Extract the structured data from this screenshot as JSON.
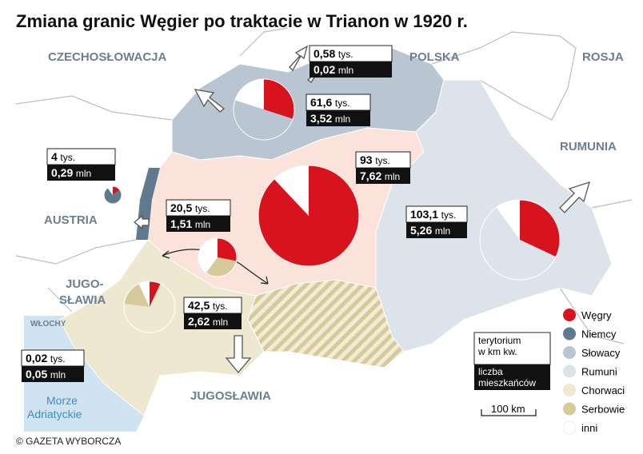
{
  "title": "Zmiana granic Węgier po traktacie w Trianon w 1920 r.",
  "countries": {
    "czechoslovakia": "CZECHOSŁOWACJA",
    "poland": "POLSKA",
    "russia": "ROSJA",
    "romania": "RUMUNIA",
    "austria": "AUSTRIA",
    "yugoslavia_west": [
      "JUGO-",
      "SŁAWIA"
    ],
    "italy": "WŁOCHY",
    "yugoslavia": "JUGOSŁAWIA",
    "sea": [
      "Morze",
      "Adriatyckie"
    ]
  },
  "regions": [
    {
      "area": "61,6",
      "area_unit": "tys.",
      "population": "3,52",
      "population_unit": "mln",
      "shares": [
        30,
        0,
        50,
        0,
        0,
        0,
        20
      ]
    },
    {
      "area": "0,58",
      "area_unit": "tys.",
      "population": "0,02",
      "population_unit": "mln"
    },
    {
      "area": "4",
      "area_unit": "tys.",
      "population": "0,29",
      "population_unit": "mln",
      "shares": [
        15,
        75,
        0,
        0,
        0,
        0,
        10
      ]
    },
    {
      "area": "93",
      "area_unit": "tys.",
      "population": "7,62",
      "population_unit": "mln",
      "shares": [
        88,
        0,
        0,
        0,
        0,
        0,
        12
      ]
    },
    {
      "area": "20,5",
      "area_unit": "tys.",
      "population": "1,51",
      "population_unit": "mln",
      "shares": [
        28,
        0,
        0,
        0,
        0,
        32,
        40
      ]
    },
    {
      "area": "103,1",
      "area_unit": "tys.",
      "population": "5,26",
      "population_unit": "mln",
      "shares": [
        32,
        0,
        0,
        58,
        0,
        0,
        10
      ]
    },
    {
      "area": "42,5",
      "area_unit": "tys.",
      "population": "2,62",
      "population_unit": "mln",
      "shares": [
        7,
        0,
        0,
        0,
        70,
        16,
        7
      ]
    },
    {
      "area": "0,02",
      "area_unit": "tys.",
      "population": "0,05",
      "population_unit": "mln"
    }
  ],
  "legend": [
    {
      "label": "Węgry",
      "color": "#d7141e"
    },
    {
      "label": "Niemcy",
      "color": "#5e7a8c"
    },
    {
      "label": "Słowacy",
      "color": "#b9c6d1"
    },
    {
      "label": "Rumuni",
      "color": "#dde3ea"
    },
    {
      "label": "Chorwaci",
      "color": "#efe8d1"
    },
    {
      "label": "Serbowie",
      "color": "#d6c99a"
    },
    {
      "label": "inni",
      "color": "#ffffff"
    }
  ],
  "key": {
    "area": [
      "terytorium",
      "w km kw."
    ],
    "population": [
      "liczba",
      "mieszkańców"
    ]
  },
  "scale": "100 km",
  "credit": "© GAZETA WYBORCZA"
}
